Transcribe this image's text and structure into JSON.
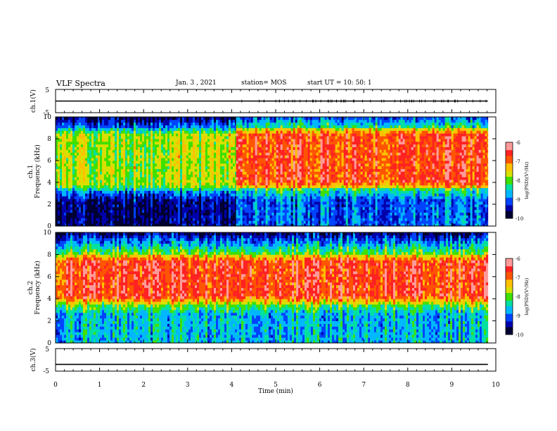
{
  "header": {
    "title": "VLF Spectra",
    "date": "Jan. 3 , 2021",
    "station": "station= MOS",
    "start": "start UT = 10: 50: 1"
  },
  "colors": {
    "colormap": [
      "#000033",
      "#0000aa",
      "#0044ff",
      "#00b8ff",
      "#00e0a0",
      "#40e000",
      "#d8e000",
      "#ffc000",
      "#ff5500",
      "#ff2222",
      "#ff9a9a"
    ]
  },
  "chart_data": [
    {
      "type": "line",
      "panel": "ch1-voltage",
      "ylabel": "ch.1(V)",
      "yticks": [
        "5",
        "-5"
      ],
      "ylim": [
        -5,
        5
      ],
      "x": [
        0,
        4.1,
        9.82
      ],
      "values": [
        0,
        0,
        0
      ]
    },
    {
      "type": "heatmap",
      "panel": "ch1-spectrogram",
      "ylabel": "ch.1 Frequency (kHz)",
      "ylim": [
        0,
        10
      ],
      "yticks": [
        "0",
        "2",
        "4",
        "6",
        "8",
        "10"
      ],
      "colorbar": {
        "label": "log(PSD)(V²/Hz)",
        "ticks": [
          "-6",
          "-7",
          "-8",
          "-9",
          "-10"
        ],
        "range": [
          -10,
          -6
        ]
      },
      "segments": [
        {
          "t_start": 0,
          "t_end": 4.1,
          "band_khz": [
            3.2,
            9.0
          ],
          "band_level": -7.8,
          "background_level": -9.7
        },
        {
          "t_start": 4.1,
          "t_end": 9.82,
          "band_khz": [
            3.4,
            9.0
          ],
          "band_level": -6.7,
          "background_level": -9.0
        }
      ]
    },
    {
      "type": "heatmap",
      "panel": "ch2-spectrogram",
      "ylabel": "ch.2 Frequency (kHz)",
      "ylim": [
        0,
        10
      ],
      "yticks": [
        "0",
        "2",
        "4",
        "6",
        "8",
        "10"
      ],
      "colorbar": {
        "label": "log(PSD)(V²/Hz)",
        "ticks": [
          "-6",
          "-7",
          "-8",
          "-9",
          "-10"
        ],
        "range": [
          -10,
          -6
        ]
      },
      "segments": [
        {
          "t_start": 0,
          "t_end": 9.82,
          "band_khz": [
            3.6,
            8.0
          ],
          "band_level": -6.6,
          "background_level": -8.6
        }
      ]
    },
    {
      "type": "line",
      "panel": "ch3-voltage",
      "ylabel": "ch.3(V)",
      "yticks": [
        "5",
        "-5"
      ],
      "ylim": [
        -5,
        5
      ],
      "x": [
        0,
        9.82
      ],
      "values": [
        -2,
        -2
      ]
    }
  ],
  "xaxis": {
    "label": "Time (min)",
    "ticks": [
      "0",
      "1",
      "2",
      "3",
      "4",
      "5",
      "6",
      "7",
      "8",
      "9",
      "10"
    ],
    "range": [
      0,
      10
    ]
  }
}
